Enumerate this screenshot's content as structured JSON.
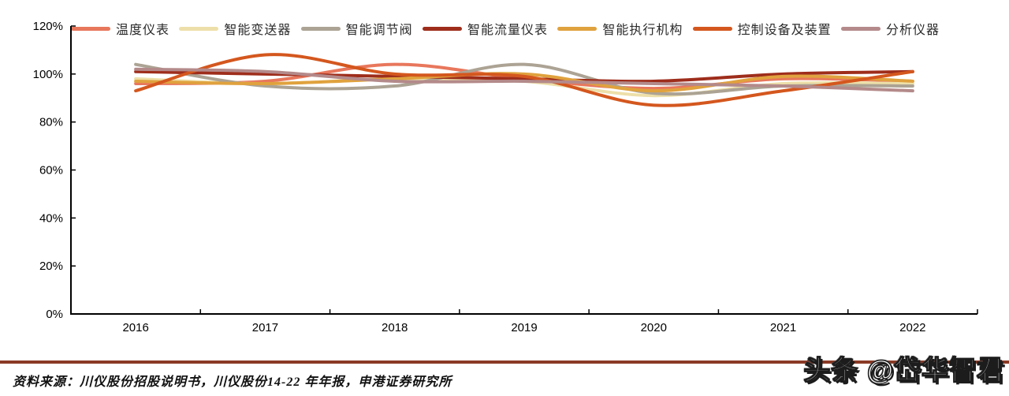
{
  "chart_data": {
    "type": "line",
    "title": "",
    "xlabel": "",
    "ylabel": "",
    "categories": [
      "2016",
      "2017",
      "2018",
      "2019",
      "2020",
      "2021",
      "2022"
    ],
    "series": [
      {
        "name": "温度仪表",
        "color": "#E8775C",
        "values": [
          96,
          97,
          104,
          98,
          94,
          98,
          97
        ]
      },
      {
        "name": "智能变送器",
        "color": "#EDDFA9",
        "values": [
          98,
          96,
          98,
          97,
          91,
          96,
          96
        ]
      },
      {
        "name": "智能调节阀",
        "color": "#ACA394",
        "values": [
          104,
          95,
          95,
          104,
          92,
          95,
          95
        ]
      },
      {
        "name": "智能流量仪表",
        "color": "#9E2D1B",
        "values": [
          101,
          100,
          99,
          98,
          97,
          100,
          101
        ]
      },
      {
        "name": "智能执行机构",
        "color": "#E0A23E",
        "values": [
          97,
          96,
          98,
          100,
          93,
          99,
          97
        ]
      },
      {
        "name": "控制设备及装置",
        "color": "#D4571E",
        "values": [
          93,
          108,
          100,
          99,
          87,
          93,
          101
        ]
      },
      {
        "name": "分析仪器",
        "color": "#B48A8A",
        "values": [
          102,
          101,
          97,
          97,
          96,
          95,
          93
        ]
      }
    ],
    "ylim": [
      0,
      120
    ],
    "y_tick_labels": [
      "0%",
      "20%",
      "40%",
      "60%",
      "80%",
      "100%",
      "120%"
    ],
    "grid": false,
    "legend_position": "top"
  },
  "footer": {
    "source_text": "资料来源：川仪股份招股说明书，川仪股份14-22 年年报，申港证券研究所",
    "rule_color": "#8B3A26",
    "watermark": "头条 @岱华智君"
  }
}
